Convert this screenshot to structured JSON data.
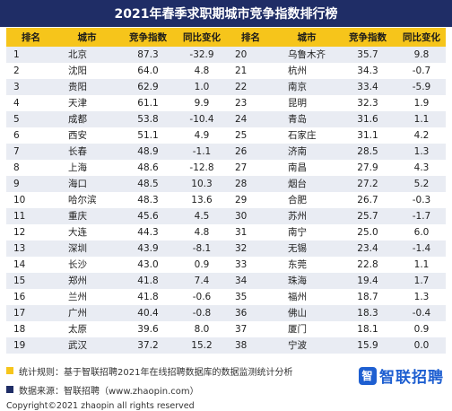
{
  "title": "2021年春季求职期城市竞争指数排行榜",
  "headers": [
    "排名",
    "城市",
    "竞争指数",
    "同比变化",
    "排名",
    "城市",
    "竞争指数",
    "同比变化"
  ],
  "left_rows": [
    [
      "1",
      "北京",
      "87.3",
      "-32.9"
    ],
    [
      "2",
      "沈阳",
      "64.0",
      "4.8"
    ],
    [
      "3",
      "贵阳",
      "62.9",
      "1.0"
    ],
    [
      "4",
      "天津",
      "61.1",
      "9.9"
    ],
    [
      "5",
      "成都",
      "53.8",
      "-10.4"
    ],
    [
      "6",
      "西安",
      "51.1",
      "4.9"
    ],
    [
      "7",
      "长春",
      "48.9",
      "-1.1"
    ],
    [
      "8",
      "上海",
      "48.6",
      "-12.8"
    ],
    [
      "9",
      "海口",
      "48.5",
      "10.3"
    ],
    [
      "10",
      "哈尔滨",
      "48.3",
      "13.6"
    ],
    [
      "11",
      "重庆",
      "45.6",
      "4.5"
    ],
    [
      "12",
      "大连",
      "44.3",
      "4.8"
    ],
    [
      "13",
      "深圳",
      "43.9",
      "-8.1"
    ],
    [
      "14",
      "长沙",
      "43.0",
      "0.9"
    ],
    [
      "15",
      "郑州",
      "41.8",
      "7.4"
    ],
    [
      "16",
      "兰州",
      "41.8",
      "-0.6"
    ],
    [
      "17",
      "广州",
      "40.4",
      "-0.8"
    ],
    [
      "18",
      "太原",
      "39.6",
      "8.0"
    ],
    [
      "19",
      "武汉",
      "37.2",
      "15.2"
    ]
  ],
  "right_rows": [
    [
      "20",
      "乌鲁木齐",
      "35.7",
      "9.8"
    ],
    [
      "21",
      "杭州",
      "34.3",
      "-0.7"
    ],
    [
      "22",
      "南京",
      "33.4",
      "-5.9"
    ],
    [
      "23",
      "昆明",
      "32.3",
      "1.9"
    ],
    [
      "24",
      "青岛",
      "31.6",
      "1.1"
    ],
    [
      "25",
      "石家庄",
      "31.1",
      "4.2"
    ],
    [
      "26",
      "济南",
      "28.5",
      "1.3"
    ],
    [
      "27",
      "南昌",
      "27.9",
      "4.3"
    ],
    [
      "28",
      "烟台",
      "27.2",
      "5.2"
    ],
    [
      "29",
      "合肥",
      "26.7",
      "-0.3"
    ],
    [
      "30",
      "苏州",
      "25.7",
      "-1.7"
    ],
    [
      "31",
      "南宁",
      "25.0",
      "6.0"
    ],
    [
      "32",
      "无锡",
      "23.4",
      "-1.4"
    ],
    [
      "33",
      "东莞",
      "22.8",
      "1.1"
    ],
    [
      "34",
      "珠海",
      "19.4",
      "1.7"
    ],
    [
      "35",
      "福州",
      "18.7",
      "1.3"
    ],
    [
      "36",
      "佛山",
      "18.3",
      "-0.4"
    ],
    [
      "37",
      "厦门",
      "18.1",
      "0.9"
    ],
    [
      "38",
      "宁波",
      "15.9",
      "0.0"
    ]
  ],
  "footer": {
    "note1": "统计规则：基于智联招聘2021年在线招聘数据库的数据监测统计分析",
    "note2": "数据来源：智联招聘（www.zhaopin.com）",
    "copyright": "Copyright©2021 zhaopin all rights reserved",
    "brand": "智联招聘",
    "brand_mark": "智"
  },
  "colors": {
    "title_bg": "#1f2d66",
    "header_bg": "#f6c51b",
    "row_alt": "#e9ecf3",
    "brand": "#1e5fd1"
  }
}
